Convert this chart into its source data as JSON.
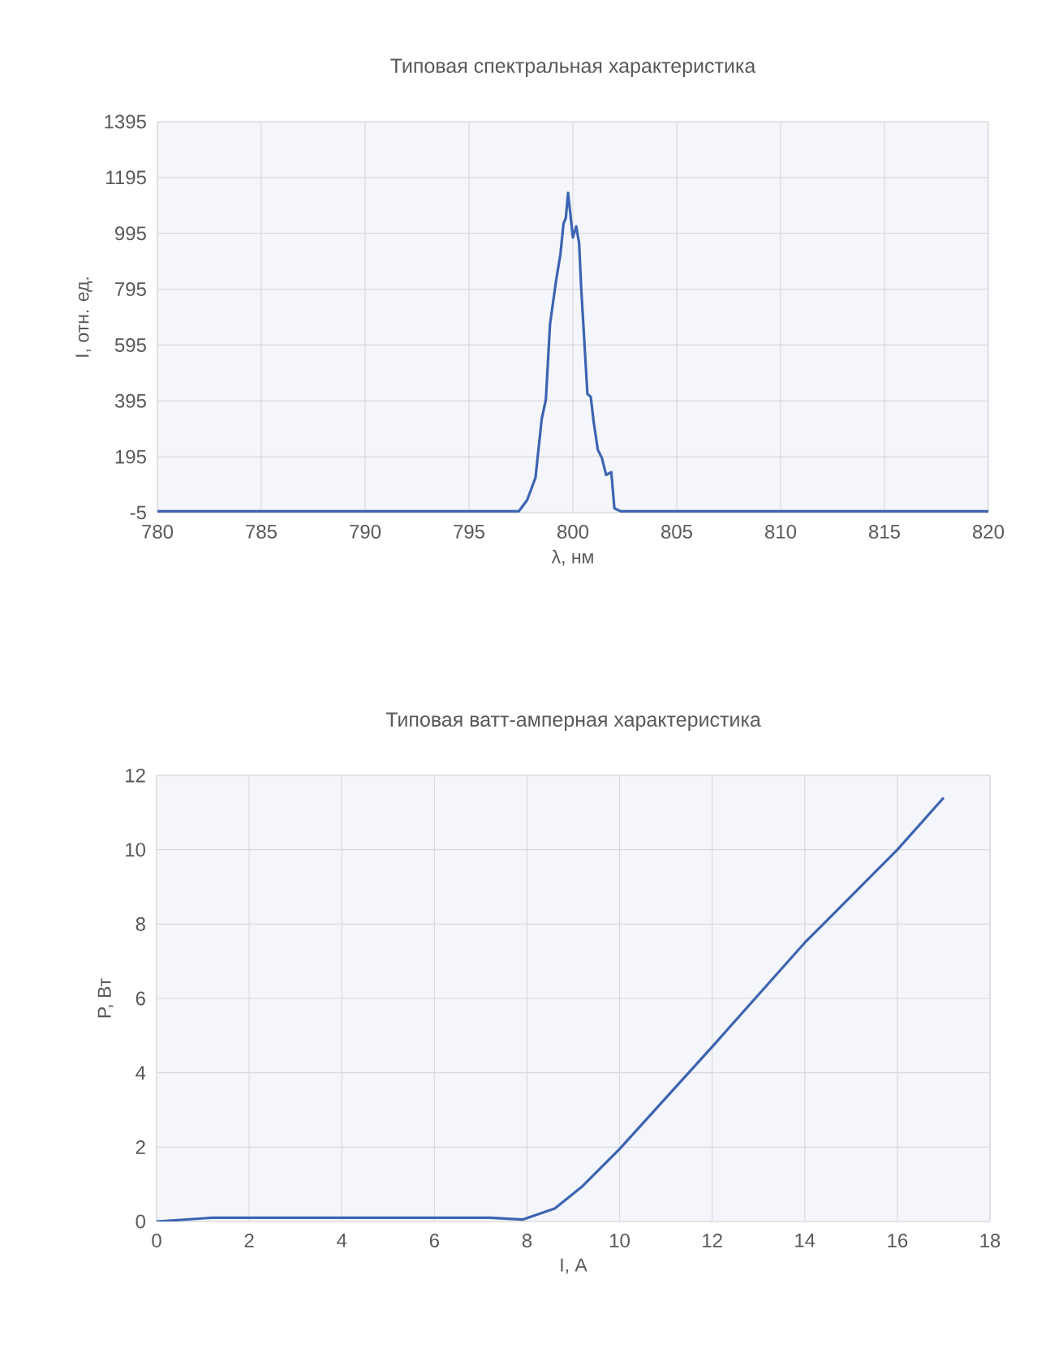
{
  "chart_data": [
    {
      "type": "line",
      "title": "Типовая спектральная характеристика",
      "xlabel": "λ, нм",
      "ylabel": "I, отн. ед.",
      "xlim": [
        780,
        820
      ],
      "ylim": [
        -5,
        1395
      ],
      "xticks": [
        780,
        785,
        790,
        795,
        800,
        805,
        810,
        815,
        820
      ],
      "yticks": [
        -5,
        195,
        395,
        595,
        795,
        995,
        1195,
        1395
      ],
      "grid": true,
      "x": [
        780,
        797,
        797.4,
        797.8,
        798.2,
        798.5,
        798.7,
        798.9,
        799.2,
        799.4,
        799.55,
        799.66,
        799.77,
        799.9,
        800.0,
        800.16,
        800.3,
        800.4,
        800.55,
        800.7,
        800.86,
        801.0,
        801.2,
        801.4,
        801.6,
        801.85,
        802.0,
        802.3,
        820
      ],
      "series": [
        {
          "color": "#3d64b2",
          "values": [
            0,
            0,
            0,
            40,
            120,
            330,
            400,
            670,
            830,
            920,
            1030,
            1050,
            1140,
            1050,
            980,
            1020,
            960,
            800,
            610,
            420,
            410,
            320,
            220,
            190,
            130,
            140,
            10,
            0,
            0
          ]
        }
      ]
    },
    {
      "type": "line",
      "title": "Типовая ватт-амперная характеристика",
      "xlabel": "I, А",
      "ylabel": "P, Вт",
      "xlim": [
        0,
        18
      ],
      "ylim": [
        0,
        12
      ],
      "xticks": [
        0,
        2,
        4,
        6,
        8,
        10,
        12,
        14,
        16,
        18
      ],
      "yticks": [
        0,
        2,
        4,
        6,
        8,
        10,
        12
      ],
      "grid": true,
      "x": [
        0,
        1.2,
        2,
        4,
        6,
        7.2,
        7.9,
        8.6,
        9.2,
        10.0,
        12.0,
        14.0,
        16.0,
        17.0
      ],
      "series": [
        {
          "color": "#3d64b2",
          "values": [
            0,
            0.1,
            0.1,
            0.1,
            0.1,
            0.1,
            0.05,
            0.35,
            0.95,
            1.95,
            4.7,
            7.5,
            10.0,
            11.4
          ]
        }
      ]
    }
  ]
}
